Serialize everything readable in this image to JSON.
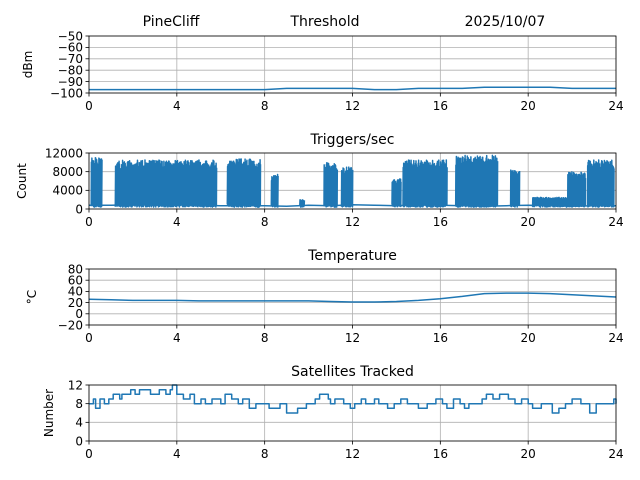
{
  "header": {
    "station": "PineCliff",
    "title": "Threshold",
    "date": "2025/10/07"
  },
  "colors": {
    "series": "#1f77b4",
    "grid": "#b0b0b0"
  },
  "chart_data": [
    {
      "type": "line",
      "title": "",
      "ylabel": "dBm",
      "xlim": [
        0,
        24
      ],
      "ylim": [
        -100,
        -50
      ],
      "xticks": [
        0,
        4,
        8,
        12,
        16,
        20,
        24
      ],
      "yticks": [
        -100,
        -90,
        -80,
        -70,
        -60,
        -50
      ],
      "ytick_labels": [
        "−100",
        "−90",
        "−80",
        "−70",
        "−60",
        "−50"
      ],
      "grid": true,
      "x": [
        0,
        1,
        2,
        3,
        4,
        5,
        6,
        7,
        8,
        9,
        10,
        11,
        12,
        13,
        14,
        15,
        16,
        17,
        18,
        19,
        20,
        21,
        22,
        23,
        24
      ],
      "y": [
        -97,
        -97,
        -97,
        -97,
        -97,
        -97,
        -97,
        -97,
        -97,
        -96,
        -96,
        -96,
        -96,
        -97,
        -97,
        -96,
        -96,
        -96,
        -95,
        -95,
        -95,
        -95,
        -96,
        -96,
        -96
      ]
    },
    {
      "type": "line",
      "title": "Triggers/sec",
      "ylabel": "Count",
      "xlim": [
        0,
        24
      ],
      "ylim": [
        0,
        12000
      ],
      "xticks": [
        0,
        4,
        8,
        12,
        16,
        20,
        24
      ],
      "yticks": [
        0,
        4000,
        8000,
        12000
      ],
      "ytick_labels": [
        "0",
        "4000",
        "8000",
        "12000"
      ],
      "grid": true,
      "bursts": [
        {
          "start": 0.1,
          "end": 0.6,
          "peak": 11000
        },
        {
          "start": 1.2,
          "end": 5.8,
          "peak": 10500
        },
        {
          "start": 6.3,
          "end": 7.8,
          "peak": 10800
        },
        {
          "start": 8.3,
          "end": 8.6,
          "peak": 7500
        },
        {
          "start": 9.6,
          "end": 9.8,
          "peak": 2000
        },
        {
          "start": 10.7,
          "end": 11.3,
          "peak": 10000
        },
        {
          "start": 11.5,
          "end": 12.0,
          "peak": 9000
        },
        {
          "start": 13.8,
          "end": 14.2,
          "peak": 6500
        },
        {
          "start": 14.3,
          "end": 16.3,
          "peak": 10500
        },
        {
          "start": 16.7,
          "end": 18.6,
          "peak": 11500
        },
        {
          "start": 19.2,
          "end": 19.6,
          "peak": 8500
        },
        {
          "start": 20.2,
          "end": 21.8,
          "peak": 2500
        },
        {
          "start": 21.8,
          "end": 22.6,
          "peak": 8000
        },
        {
          "start": 22.7,
          "end": 23.9,
          "peak": 10500
        }
      ],
      "baseline": [
        [
          0,
          800
        ],
        [
          1,
          800
        ],
        [
          2,
          900
        ],
        [
          3,
          800
        ],
        [
          4,
          900
        ],
        [
          5,
          800
        ],
        [
          6,
          700
        ],
        [
          7,
          700
        ],
        [
          8,
          700
        ],
        [
          9,
          600
        ],
        [
          10,
          800
        ],
        [
          11,
          700
        ],
        [
          12,
          900
        ],
        [
          13,
          800
        ],
        [
          14,
          700
        ],
        [
          15,
          900
        ],
        [
          16,
          800
        ],
        [
          17,
          700
        ],
        [
          18,
          600
        ],
        [
          19,
          700
        ],
        [
          20,
          800
        ],
        [
          21,
          700
        ],
        [
          22,
          600
        ],
        [
          23,
          700
        ],
        [
          24,
          700
        ]
      ]
    },
    {
      "type": "line",
      "title": "Temperature",
      "ylabel": "°C",
      "xlim": [
        0,
        24
      ],
      "ylim": [
        -20,
        80
      ],
      "xticks": [
        0,
        4,
        8,
        12,
        16,
        20,
        24
      ],
      "yticks": [
        -20,
        0,
        20,
        40,
        60,
        80
      ],
      "ytick_labels": [
        "−20",
        "0",
        "20",
        "40",
        "60",
        "80"
      ],
      "grid": true,
      "x": [
        0,
        1,
        2,
        3,
        4,
        5,
        6,
        7,
        8,
        9,
        10,
        11,
        12,
        13,
        14,
        15,
        16,
        17,
        18,
        19,
        20,
        21,
        22,
        23,
        24
      ],
      "y": [
        26,
        25,
        24,
        24,
        24,
        23,
        23,
        23,
        23,
        23,
        23,
        22,
        21,
        21,
        22,
        24,
        27,
        31,
        36,
        37,
        37,
        36,
        34,
        32,
        30
      ]
    },
    {
      "type": "line",
      "title": "Satellites Tracked",
      "ylabel": "Number",
      "xlim": [
        0,
        24
      ],
      "ylim": [
        0,
        12
      ],
      "xticks": [
        0,
        4,
        8,
        12,
        16,
        20,
        24
      ],
      "yticks": [
        0,
        4,
        8,
        12
      ],
      "ytick_labels": [
        "0",
        "4",
        "8",
        "12"
      ],
      "grid": true,
      "x": [
        0,
        0.2,
        0.3,
        0.5,
        0.7,
        0.9,
        1.1,
        1.4,
        1.5,
        1.9,
        2.1,
        2.3,
        2.8,
        3.2,
        3.5,
        3.7,
        3.8,
        4.0,
        4.3,
        4.6,
        4.8,
        5.1,
        5.3,
        5.6,
        6.0,
        6.2,
        6.5,
        6.8,
        7.0,
        7.3,
        7.6,
        8.0,
        8.2,
        8.7,
        9.0,
        9.5,
        9.9,
        10.3,
        10.5,
        10.9,
        11.0,
        11.2,
        11.6,
        11.9,
        12.1,
        12.4,
        12.6,
        13.0,
        13.2,
        13.6,
        13.9,
        14.2,
        14.5,
        14.8,
        15.0,
        15.4,
        15.8,
        16.1,
        16.3,
        16.6,
        16.9,
        17.1,
        17.3,
        17.6,
        17.9,
        18.1,
        18.4,
        18.7,
        19.1,
        19.4,
        19.7,
        20.0,
        20.2,
        20.6,
        20.9,
        21.1,
        21.4,
        21.7,
        22.0,
        22.4,
        22.8,
        23.1,
        23.5,
        23.9,
        24.0
      ],
      "y": [
        8,
        9,
        7,
        9,
        8,
        9,
        10,
        9,
        10,
        11,
        10,
        11,
        10,
        11,
        10,
        11,
        12,
        10,
        9,
        10,
        8,
        9,
        8,
        9,
        8,
        10,
        9,
        8,
        9,
        7,
        8,
        8,
        7,
        8,
        6,
        7,
        8,
        9,
        10,
        9,
        8,
        9,
        8,
        7,
        8,
        9,
        8,
        9,
        8,
        7,
        8,
        9,
        8,
        8,
        7,
        8,
        9,
        8,
        7,
        9,
        8,
        7,
        8,
        8,
        9,
        10,
        9,
        10,
        9,
        8,
        9,
        8,
        7,
        8,
        8,
        6,
        7,
        8,
        9,
        8,
        6,
        8,
        8,
        9,
        8
      ]
    }
  ]
}
